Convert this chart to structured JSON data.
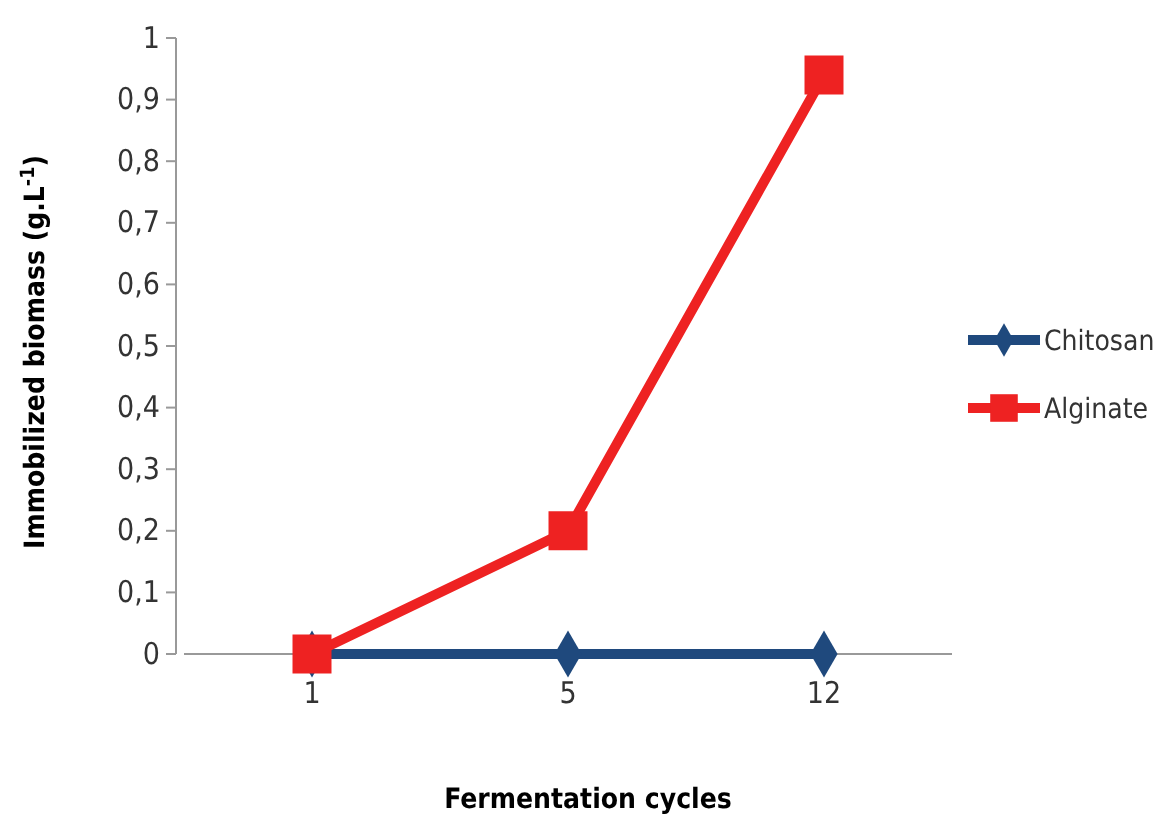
{
  "chart_data": {
    "type": "line",
    "xlabel": "Fermentation cycles",
    "ylabel": "Immobilized biomass (g.L$^{-1}$)",
    "categories": [
      "1",
      "5",
      "12"
    ],
    "series": [
      {
        "name": "Chitosan",
        "color": "#1f497d",
        "marker": "diamond",
        "values": [
          0,
          0,
          0
        ]
      },
      {
        "name": "Alginate",
        "color": "#ee2222",
        "marker": "square",
        "values": [
          0,
          0.2,
          0.94
        ]
      }
    ],
    "ylim": [
      0,
      1
    ],
    "yticks": [
      0,
      {
        "value": 0.1,
        "label": "0,1"
      },
      {
        "value": 0.2,
        "label": "0,2"
      },
      {
        "value": 0.3,
        "label": "0,3"
      },
      {
        "value": 0.4,
        "label": "0,4"
      },
      {
        "value": 0.5,
        "label": "0,5"
      },
      {
        "value": 0.6,
        "label": "0,6"
      },
      {
        "value": 0.7,
        "label": "0,7"
      },
      {
        "value": 0.8,
        "label": "0,8"
      },
      {
        "value": 0.9,
        "label": "0,9"
      },
      1
    ],
    "grid": false,
    "legend": "right",
    "line_style": "solid"
  }
}
